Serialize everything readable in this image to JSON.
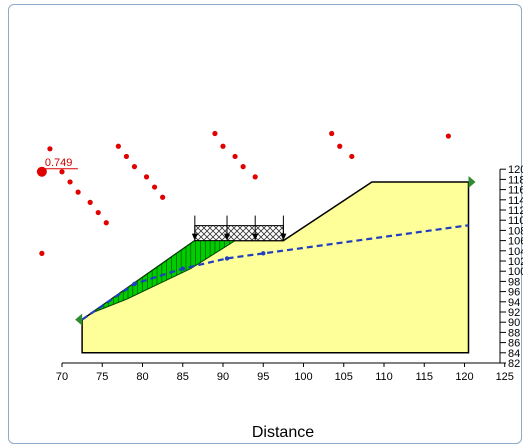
{
  "chart_data": {
    "type": "slope-stability",
    "xlabel": "Distance",
    "x_ticks": [
      70,
      75,
      80,
      85,
      90,
      95,
      100,
      105,
      110,
      115,
      120,
      125
    ],
    "y_ticks_visible": [
      "120",
      "118",
      "116",
      "114",
      "112",
      "110",
      "108",
      "106",
      "104",
      "102",
      "100",
      "98",
      "96",
      "94",
      "92",
      "90",
      "88",
      "86",
      "84",
      "82"
    ],
    "factor_of_safety": "0.749",
    "slope_profile": [
      {
        "x": 72.5,
        "y": 84
      },
      {
        "x": 72.5,
        "y": 90.5
      },
      {
        "x": 86.5,
        "y": 106
      },
      {
        "x": 97.5,
        "y": 106
      },
      {
        "x": 108.5,
        "y": 117.5
      },
      {
        "x": 120.5,
        "y": 117.5
      },
      {
        "x": 120.5,
        "y": 84
      }
    ],
    "piezometric_line": [
      {
        "x": 72.5,
        "y": 90.5
      },
      {
        "x": 79,
        "y": 97.5
      },
      {
        "x": 85,
        "y": 100.5
      },
      {
        "x": 90.5,
        "y": 102.5
      },
      {
        "x": 95,
        "y": 103.5
      },
      {
        "x": 120.5,
        "y": 109
      }
    ],
    "failure_surface": [
      {
        "x": 74,
        "y": 92
      },
      {
        "x": 78,
        "y": 94.5
      },
      {
        "x": 82,
        "y": 97.5
      },
      {
        "x": 86,
        "y": 100.5
      },
      {
        "x": 89.5,
        "y": 104
      },
      {
        "x": 91.5,
        "y": 106
      }
    ],
    "surcharge_load": {
      "x_start": 86.5,
      "x_end": 97.5,
      "arrow_x": [
        86.5,
        90.5,
        94,
        97.5
      ]
    },
    "grid_centers": [
      {
        "x": 68.5,
        "y": 124
      },
      {
        "x": 70,
        "y": 119.5
      },
      {
        "x": 71,
        "y": 117.5
      },
      {
        "x": 72,
        "y": 115.5
      },
      {
        "x": 73.5,
        "y": 113.5
      },
      {
        "x": 74.5,
        "y": 111.5
      },
      {
        "x": 75.5,
        "y": 109.5
      },
      {
        "x": 67.5,
        "y": 103.5
      },
      {
        "x": 77,
        "y": 124.5
      },
      {
        "x": 78,
        "y": 122.5
      },
      {
        "x": 79,
        "y": 120.5
      },
      {
        "x": 80.5,
        "y": 118.5
      },
      {
        "x": 81.5,
        "y": 116.5
      },
      {
        "x": 82.5,
        "y": 114.5
      },
      {
        "x": 89,
        "y": 127
      },
      {
        "x": 90,
        "y": 124.5
      },
      {
        "x": 91.5,
        "y": 122.5
      },
      {
        "x": 92.5,
        "y": 120.5
      },
      {
        "x": 94,
        "y": 118.5
      },
      {
        "x": 103.5,
        "y": 127
      },
      {
        "x": 104.5,
        "y": 124.5
      },
      {
        "x": 106,
        "y": 122.5
      },
      {
        "x": 118,
        "y": 126.5
      }
    ],
    "critical_center": {
      "x": 67.5,
      "y": 119.5
    },
    "colors": {
      "soil": "#ffff99",
      "slip_mass": "#00cc00",
      "piezometric": "#1f3fbf",
      "grid_point": "#e00000",
      "boundary_marker": "#2e8b2e"
    }
  }
}
